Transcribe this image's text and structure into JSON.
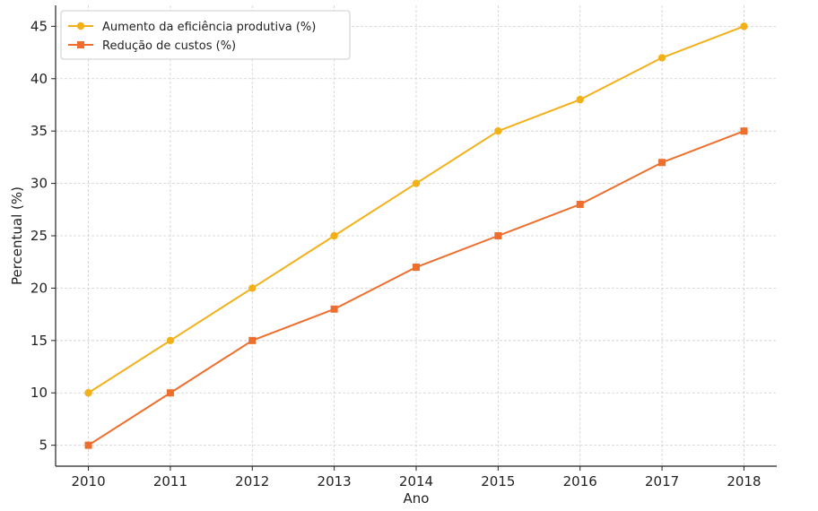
{
  "chart_data": {
    "type": "line",
    "title": "",
    "xlabel": "Ano",
    "ylabel": "Percentual (%)",
    "x": [
      2010,
      2011,
      2012,
      2013,
      2014,
      2015,
      2016,
      2017,
      2018
    ],
    "xticks": [
      "2010",
      "2011",
      "2012",
      "2013",
      "2014",
      "2015",
      "2016",
      "2017",
      "2018"
    ],
    "yticks": [
      5,
      10,
      15,
      20,
      25,
      30,
      35,
      40,
      45
    ],
    "ylim": [
      3.0,
      47.0
    ],
    "grid": true,
    "legend_position": "top-left",
    "series": [
      {
        "name": "Aumento da eficiência produtiva (%)",
        "values": [
          10,
          15,
          20,
          25,
          30,
          35,
          38,
          42,
          45
        ],
        "color": "#F2B019",
        "marker": "circle"
      },
      {
        "name": "Redução de custos (%)",
        "values": [
          5,
          10,
          15,
          18,
          22,
          25,
          28,
          32,
          35
        ],
        "color": "#EE6F2D",
        "marker": "square"
      }
    ]
  }
}
